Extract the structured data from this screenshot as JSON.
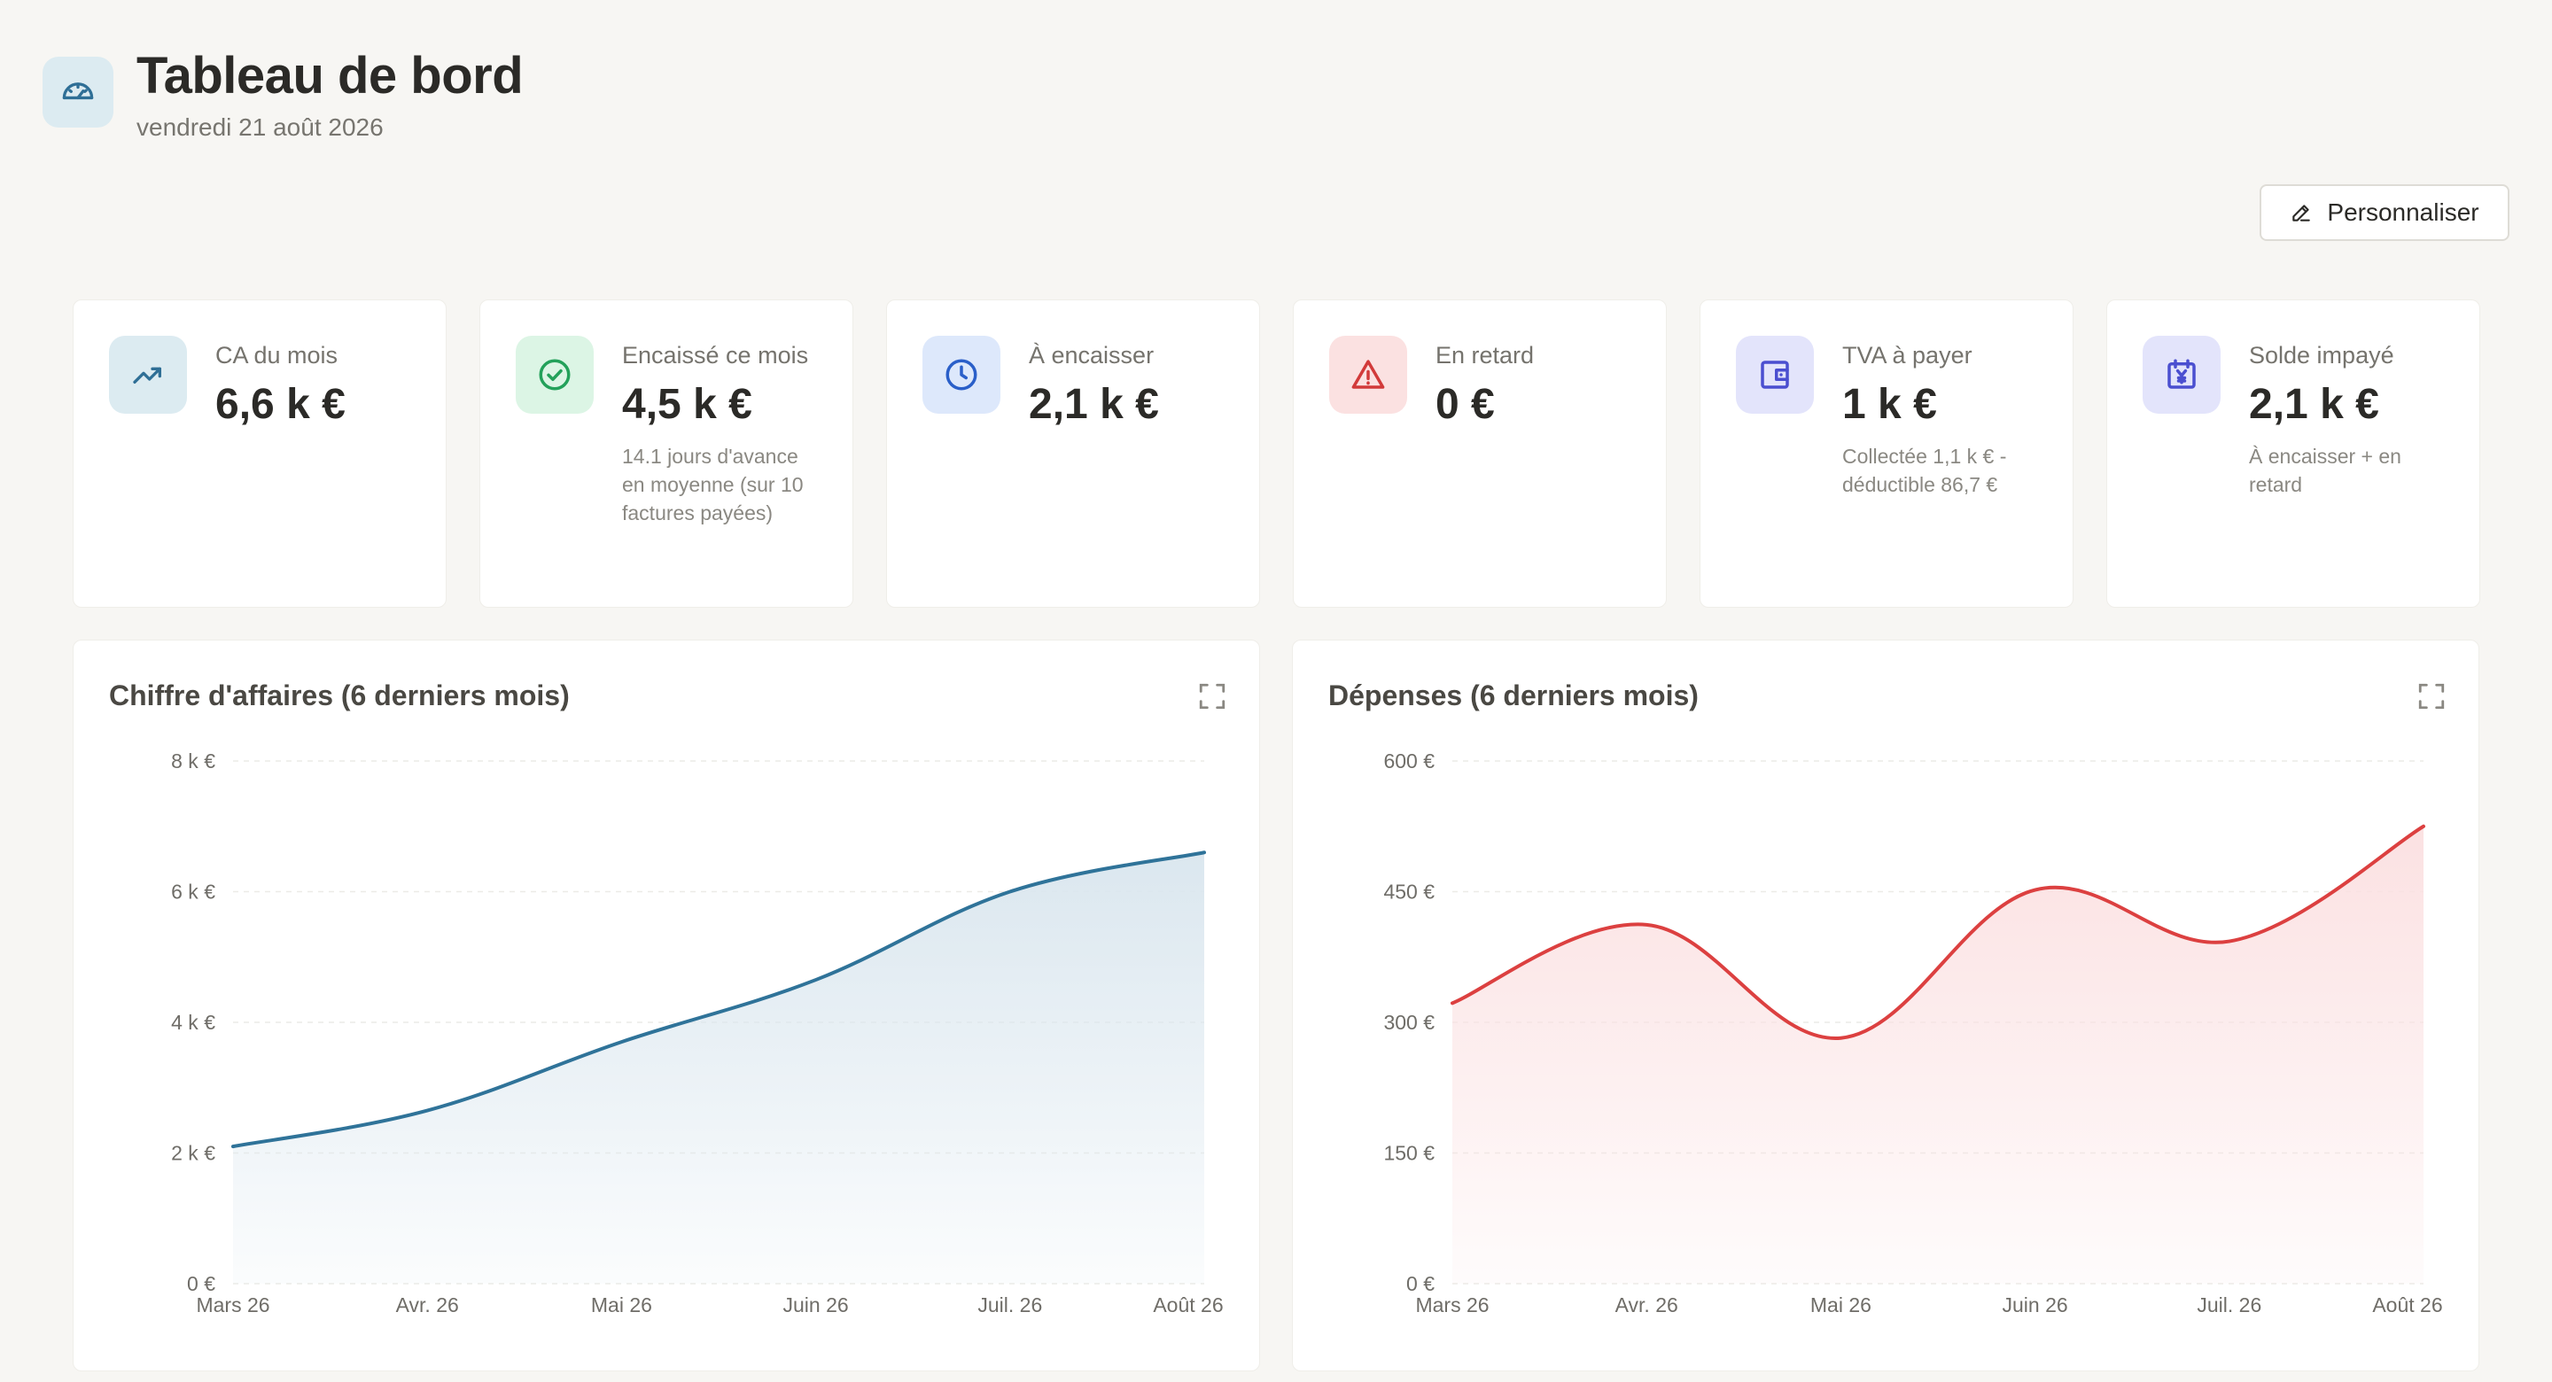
{
  "header": {
    "title": "Tableau de bord",
    "date": "vendredi 21 août 2026",
    "icon": "gauge-icon",
    "personalize_label": "Personnaliser"
  },
  "kpis": [
    {
      "label": "CA du mois",
      "value": "6,6 k €",
      "sub": "",
      "icon": "trending-up-icon",
      "icon_bg": "#dcebf1",
      "icon_color": "#2f6f96"
    },
    {
      "label": "Encaissé ce mois",
      "value": "4,5 k €",
      "sub": "14.1 jours d'avance en moyenne (sur 10 factures payées)",
      "icon": "check-circle-icon",
      "icon_bg": "#dcf5e5",
      "icon_color": "#23a15a"
    },
    {
      "label": "À encaisser",
      "value": "2,1 k €",
      "sub": "",
      "icon": "clock-icon",
      "icon_bg": "#dde8fb",
      "icon_color": "#2a5fc9"
    },
    {
      "label": "En retard",
      "value": "0 €",
      "sub": "",
      "icon": "warning-icon",
      "icon_bg": "#fbe1e1",
      "icon_color": "#d23a3a"
    },
    {
      "label": "TVA à payer",
      "value": "1 k €",
      "sub": "Collectée 1,1 k € - déductible 86,7 €",
      "icon": "wallet-icon",
      "icon_bg": "#e3e4fb",
      "icon_color": "#4b4fd0"
    },
    {
      "label": "Solde impayé",
      "value": "2,1 k €",
      "sub": "À encaisser + en retard",
      "icon": "calendar-yen-icon",
      "icon_bg": "#e3e4fb",
      "icon_color": "#4b4fd0"
    }
  ],
  "chart_data": [
    {
      "type": "area",
      "title": "Chiffre d'affaires (6 derniers mois)",
      "categories": [
        "Mars 26",
        "Avr. 26",
        "Mai 26",
        "Juin 26",
        "Juil. 26",
        "Août 26"
      ],
      "values": [
        2100,
        2650,
        3700,
        4650,
        6000,
        6600
      ],
      "yticks": [
        "0 €",
        "2 k €",
        "4 k €",
        "6 k €",
        "8 k €"
      ],
      "ylim": [
        0,
        8000
      ],
      "grid": true,
      "color": "#2f7399",
      "fill": "#dbe7ef"
    },
    {
      "type": "area",
      "title": "Dépenses (6 derniers mois)",
      "categories": [
        "Mars 26",
        "Avr. 26",
        "Mai 26",
        "Juin 26",
        "Juil. 26",
        "Août 26"
      ],
      "values": [
        322,
        412,
        282,
        452,
        393,
        525
      ],
      "yticks": [
        "0 €",
        "150 €",
        "300 €",
        "450 €",
        "600 €"
      ],
      "ylim": [
        0,
        600
      ],
      "grid": true,
      "color": "#dc4040",
      "fill": "#fbe1e2"
    }
  ]
}
